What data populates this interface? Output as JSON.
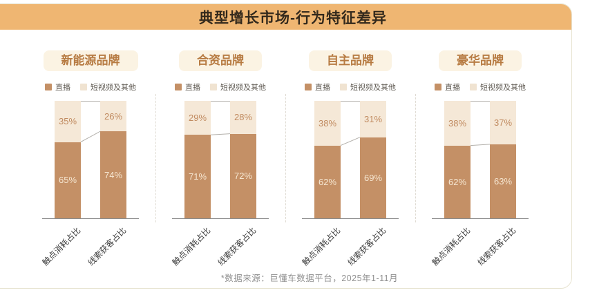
{
  "title": "典型增长市场-行为特征差异",
  "legend": {
    "live": "直播",
    "other": "短视频及其他"
  },
  "footnote": "*数据来源：巨懂车数据平台，2025年1-11月",
  "colors": {
    "banner": "#efb672",
    "live_bar": "#c49066",
    "other_bar": "#f5e8d7",
    "badge_bg": "#fbf3e3",
    "badge_text": "#b77b42"
  },
  "panels": [
    {
      "title": "新能源品牌"
    },
    {
      "title": "合资品牌"
    },
    {
      "title": "自主品牌"
    },
    {
      "title": "豪华品牌"
    }
  ],
  "chart_data": [
    {
      "type": "bar",
      "stacked": true,
      "group": "新能源品牌",
      "categories": [
        "触点消耗占比",
        "线索获客占比"
      ],
      "series": [
        {
          "name": "直播",
          "values": [
            65,
            74
          ]
        },
        {
          "name": "短视频及其他",
          "values": [
            35,
            26
          ]
        }
      ],
      "unit": "%",
      "ylim": [
        0,
        100
      ],
      "legend_position": "top"
    },
    {
      "type": "bar",
      "stacked": true,
      "group": "合资品牌",
      "categories": [
        "触点消耗占比",
        "线索获客占比"
      ],
      "series": [
        {
          "name": "直播",
          "values": [
            71,
            72
          ]
        },
        {
          "name": "短视频及其他",
          "values": [
            29,
            28
          ]
        }
      ],
      "unit": "%",
      "ylim": [
        0,
        100
      ],
      "legend_position": "top"
    },
    {
      "type": "bar",
      "stacked": true,
      "group": "自主品牌",
      "categories": [
        "触点消耗占比",
        "线索获客占比"
      ],
      "series": [
        {
          "name": "直播",
          "values": [
            62,
            69
          ]
        },
        {
          "name": "短视频及其他",
          "values": [
            38,
            31
          ]
        }
      ],
      "unit": "%",
      "ylim": [
        0,
        100
      ],
      "legend_position": "top"
    },
    {
      "type": "bar",
      "stacked": true,
      "group": "豪华品牌",
      "categories": [
        "触点消耗占比",
        "线索获客占比"
      ],
      "series": [
        {
          "name": "直播",
          "values": [
            62,
            63
          ]
        },
        {
          "name": "短视频及其他",
          "values": [
            38,
            37
          ]
        }
      ],
      "unit": "%",
      "ylim": [
        0,
        100
      ],
      "legend_position": "top"
    }
  ]
}
